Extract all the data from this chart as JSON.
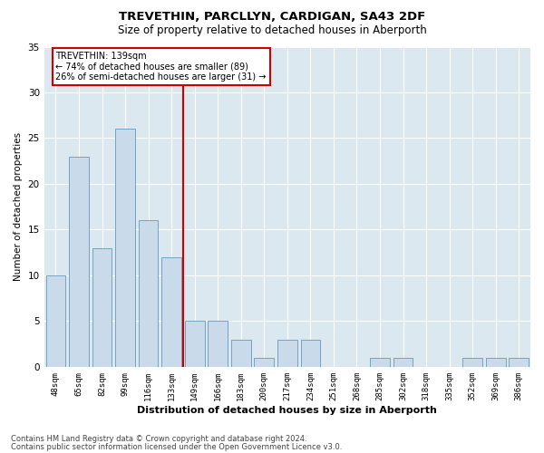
{
  "title1": "TREVETHIN, PARCLLYN, CARDIGAN, SA43 2DF",
  "title2": "Size of property relative to detached houses in Aberporth",
  "xlabel": "Distribution of detached houses by size in Aberporth",
  "ylabel": "Number of detached properties",
  "categories": [
    "48sqm",
    "65sqm",
    "82sqm",
    "99sqm",
    "116sqm",
    "133sqm",
    "149sqm",
    "166sqm",
    "183sqm",
    "200sqm",
    "217sqm",
    "234sqm",
    "251sqm",
    "268sqm",
    "285sqm",
    "302sqm",
    "318sqm",
    "335sqm",
    "352sqm",
    "369sqm",
    "386sqm"
  ],
  "values": [
    10,
    23,
    13,
    26,
    16,
    12,
    5,
    5,
    3,
    1,
    3,
    3,
    0,
    0,
    1,
    1,
    0,
    0,
    1,
    1,
    1
  ],
  "bar_color": "#c9daea",
  "bar_edge_color": "#6699bb",
  "vline_x_index": 5.5,
  "vline_color": "#cc0000",
  "ylim": [
    0,
    35
  ],
  "yticks": [
    0,
    5,
    10,
    15,
    20,
    25,
    30,
    35
  ],
  "annotation_title": "TREVETHIN: 139sqm",
  "annotation_line1": "← 74% of detached houses are smaller (89)",
  "annotation_line2": "26% of semi-detached houses are larger (31) →",
  "annotation_box_color": "#ffffff",
  "annotation_box_edge": "#cc0000",
  "footer1": "Contains HM Land Registry data © Crown copyright and database right 2024.",
  "footer2": "Contains public sector information licensed under the Open Government Licence v3.0.",
  "plot_bg_color": "#dce8f0"
}
